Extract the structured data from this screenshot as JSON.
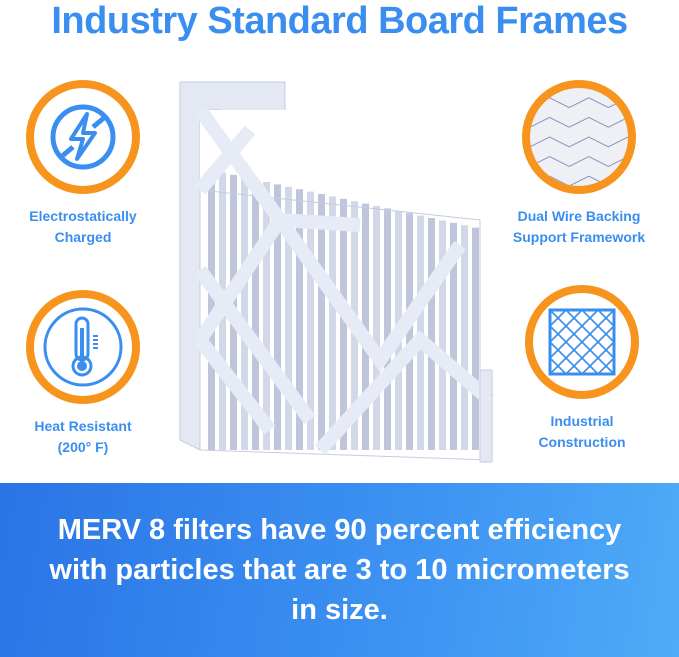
{
  "title": "Industry Standard Board Frames",
  "features": [
    {
      "label_lines": [
        "Electrostatically",
        "Charged"
      ],
      "icon": "no-static-bolt-icon"
    },
    {
      "label_lines": [
        "Heat Resistant",
        "(200° F)"
      ],
      "icon": "thermometer-icon"
    },
    {
      "label_lines": [
        "Dual Wire Backing",
        "Support Framework"
      ],
      "icon": "wire-mesh-photo"
    },
    {
      "label_lines": [
        "Industrial",
        "Construction"
      ],
      "icon": "grid-frame-icon"
    }
  ],
  "banner": {
    "text": "MERV 8 filters have 90 percent efficiency with particles that are 3 to 10 micrometers in size."
  },
  "colors": {
    "accent_blue": "#3a8ef0",
    "ring_orange": "#f7941d",
    "banner_start": "#2a74e6",
    "banner_end": "#4fabf8"
  }
}
